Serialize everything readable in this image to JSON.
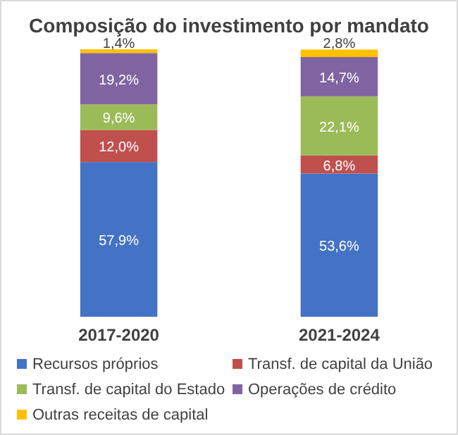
{
  "chart_data": {
    "type": "bar",
    "title": "Composição do investimento por mandato",
    "categories": [
      "2017-2020",
      "2021-2024"
    ],
    "stacked": true,
    "legend": "bottom",
    "series": [
      {
        "name": "Recursos próprios",
        "color": "#4472c4",
        "values": [
          57.9,
          53.6
        ],
        "value_labels": [
          "57,9%",
          "53,6%"
        ]
      },
      {
        "name": "Transf. de capital da União",
        "color": "#c0504d",
        "values": [
          12.0,
          6.8
        ],
        "value_labels": [
          "12,0%",
          "6,8%"
        ]
      },
      {
        "name": "Transf. de capital do Estado",
        "color": "#9bbb59",
        "values": [
          9.6,
          22.1
        ],
        "value_labels": [
          "9,6%",
          "22,1%"
        ]
      },
      {
        "name": "Operações de crédito",
        "color": "#8064a2",
        "values": [
          19.2,
          14.7
        ],
        "value_labels": [
          "19,2%",
          "14,7%"
        ]
      },
      {
        "name": "Outras receitas de capital",
        "color": "#ffc000",
        "values": [
          1.4,
          2.8
        ],
        "value_labels": [
          "1,4%",
          "2,8%"
        ]
      }
    ]
  }
}
